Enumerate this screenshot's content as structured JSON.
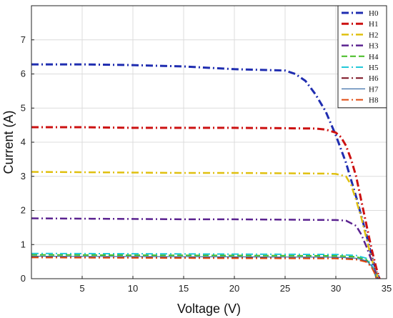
{
  "chart_data": {
    "type": "line",
    "title": "",
    "xlabel": "Voltage (V)",
    "ylabel": "Current (A)",
    "xlim": [
      0,
      35
    ],
    "ylim": [
      0,
      8
    ],
    "xticks": [
      5,
      10,
      15,
      20,
      25,
      30,
      35
    ],
    "yticks": [
      0,
      1,
      2,
      3,
      4,
      5,
      6,
      7
    ],
    "grid": true,
    "legend_position": "top-right",
    "series": [
      {
        "name": "H0",
        "color": "#1f2db0",
        "dash": "dashdot",
        "width": 3,
        "x": [
          0,
          5,
          10,
          15,
          20,
          25,
          26,
          27,
          28,
          29,
          30,
          31,
          32,
          33,
          33.5,
          34,
          34.3
        ],
        "y": [
          6.28,
          6.28,
          6.26,
          6.22,
          6.14,
          6.1,
          6.0,
          5.8,
          5.4,
          4.9,
          4.2,
          3.4,
          2.4,
          1.3,
          0.7,
          0.2,
          0
        ]
      },
      {
        "name": "H1",
        "color": "#cc1111",
        "dash": "dashdot",
        "width": 3,
        "x": [
          0,
          5,
          10,
          15,
          20,
          25,
          28,
          29,
          30,
          30.5,
          31,
          31.5,
          32,
          32.5,
          33,
          33.5,
          34,
          34.3
        ],
        "y": [
          4.44,
          4.44,
          4.42,
          4.42,
          4.42,
          4.41,
          4.4,
          4.37,
          4.28,
          4.15,
          3.9,
          3.5,
          3.0,
          2.3,
          1.6,
          0.9,
          0.3,
          0
        ]
      },
      {
        "name": "H2",
        "color": "#e0c010",
        "dash": "dashdot",
        "width": 2.5,
        "x": [
          0,
          5,
          10,
          15,
          20,
          25,
          29,
          30,
          31,
          31.5,
          32,
          32.5,
          33,
          33.5,
          34,
          34.2
        ],
        "y": [
          3.13,
          3.12,
          3.11,
          3.1,
          3.1,
          3.09,
          3.08,
          3.07,
          3.0,
          2.75,
          2.3,
          1.8,
          1.2,
          0.6,
          0.15,
          0
        ]
      },
      {
        "name": "H3",
        "color": "#5b2390",
        "dash": "dashdot",
        "width": 2.5,
        "x": [
          0,
          5,
          10,
          15,
          20,
          25,
          30,
          31,
          32,
          32.5,
          33,
          33.5,
          34,
          34.1
        ],
        "y": [
          1.77,
          1.76,
          1.75,
          1.74,
          1.74,
          1.73,
          1.72,
          1.7,
          1.55,
          1.3,
          0.95,
          0.55,
          0.1,
          0
        ]
      },
      {
        "name": "H4",
        "color": "#44bb22",
        "dash": "dash",
        "width": 2,
        "x": [
          0,
          10,
          20,
          30,
          32,
          33,
          33.5,
          33.8,
          34
        ],
        "y": [
          0.7,
          0.69,
          0.68,
          0.67,
          0.64,
          0.56,
          0.4,
          0.2,
          0
        ]
      },
      {
        "name": "H5",
        "color": "#22c8d8",
        "dash": "dashdot",
        "width": 2,
        "x": [
          0,
          10,
          20,
          30,
          32,
          33,
          33.5,
          33.8,
          34
        ],
        "y": [
          0.74,
          0.73,
          0.72,
          0.71,
          0.68,
          0.6,
          0.43,
          0.22,
          0
        ]
      },
      {
        "name": "H6",
        "color": "#7a1020",
        "dash": "dashdot",
        "width": 2,
        "x": [
          0,
          10,
          20,
          30,
          32,
          33,
          33.5,
          33.8,
          34
        ],
        "y": [
          0.63,
          0.62,
          0.61,
          0.6,
          0.57,
          0.5,
          0.36,
          0.18,
          0
        ]
      },
      {
        "name": "H7",
        "color": "#3b6fa8",
        "dash": "solid",
        "width": 1.2,
        "x": [
          0,
          10,
          20,
          30,
          32,
          33,
          33.5,
          33.8,
          34
        ],
        "y": [
          0.66,
          0.65,
          0.64,
          0.63,
          0.6,
          0.53,
          0.38,
          0.19,
          0
        ]
      },
      {
        "name": "H8",
        "color": "#e04a10",
        "dash": "dashdot",
        "width": 2,
        "x": [
          0,
          10,
          20,
          30,
          32,
          33,
          33.5,
          33.8,
          34
        ],
        "y": [
          0.62,
          0.61,
          0.6,
          0.59,
          0.56,
          0.49,
          0.35,
          0.17,
          0
        ]
      }
    ]
  }
}
